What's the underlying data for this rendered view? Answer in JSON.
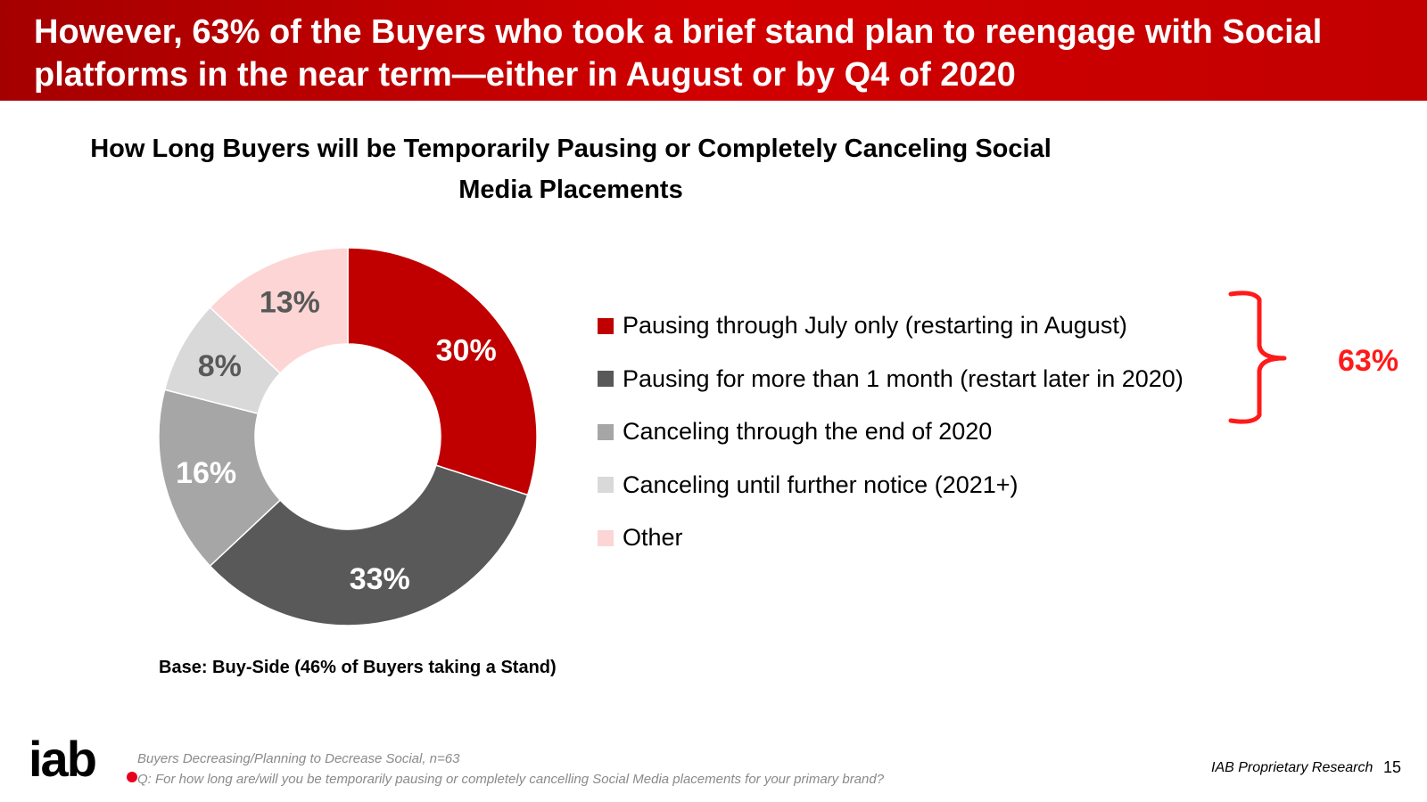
{
  "header": {
    "title": "However, 63% of the Buyers who took a brief stand plan to reengage with Social platforms in the near term—either in August or by Q4 of 2020"
  },
  "chart_data": {
    "type": "pie",
    "variant": "donut",
    "title": "How Long Buyers will be Temporarily Pausing or Completely Canceling Social Media Placements",
    "categories": [
      "Pausing through July only (restarting in August)",
      "Pausing for more than 1 month (restart later in 2020)",
      "Canceling through the end of 2020",
      "Canceling until further notice (2021+)",
      "Other"
    ],
    "values": [
      30,
      33,
      16,
      8,
      13
    ],
    "data_labels": [
      "30%",
      "33%",
      "16%",
      "8%",
      "13%"
    ],
    "colors": [
      "#c00000",
      "#595959",
      "#a6a6a6",
      "#d9d9d9",
      "#fdd5d5"
    ],
    "label_colors": [
      "#ffffff",
      "#ffffff",
      "#ffffff",
      "#595959",
      "#595959"
    ],
    "legend_position": "right",
    "annotation": {
      "label": "63%",
      "covers": [
        "Pausing through July only (restarting in August)",
        "Pausing for more than 1 month (restart later in 2020)"
      ],
      "color": "#ff1a1a"
    }
  },
  "base_note": "Base:  Buy-Side (46% of Buyers taking a Stand)",
  "footer": {
    "logo_text": "iab",
    "footnote_1": "Buyers Decreasing/Planning to Decrease Social, n=63",
    "footnote_2": "Q: For how long are/will you be temporarily pausing or completely cancelling Social Media placements for your primary brand?",
    "source": "IAB Proprietary Research",
    "page_number": "15"
  }
}
